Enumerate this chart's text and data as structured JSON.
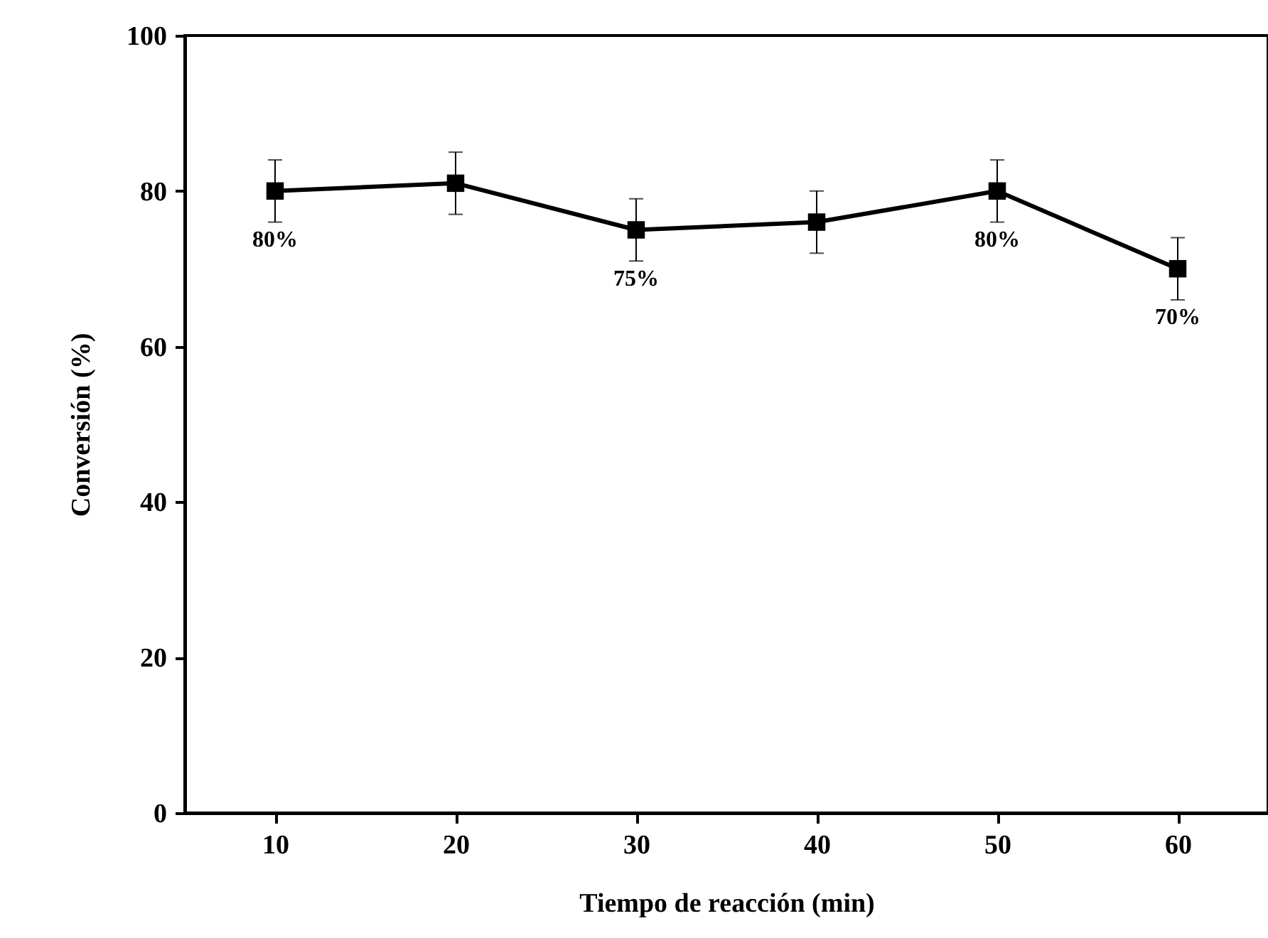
{
  "chart_data": {
    "type": "line",
    "xlabel": "Tiempo de reacción (min)",
    "ylabel": "Conversión (%)",
    "x": [
      10,
      20,
      30,
      40,
      50,
      60
    ],
    "series": [
      {
        "color": "#000000",
        "values": [
          80,
          81,
          75,
          76,
          80,
          70
        ],
        "errors": [
          4,
          4,
          4,
          4,
          4,
          4
        ],
        "value_labels": [
          "80%",
          null,
          "75%",
          null,
          "80%",
          "70%"
        ]
      }
    ],
    "xlim": [
      5,
      65
    ],
    "xticks": [
      10,
      20,
      30,
      40,
      50,
      60
    ],
    "ylim": [
      0,
      100
    ],
    "yticks": [
      0,
      20,
      40,
      60,
      80,
      100
    ],
    "grid": false,
    "marker": "square",
    "line_style": "solid"
  }
}
